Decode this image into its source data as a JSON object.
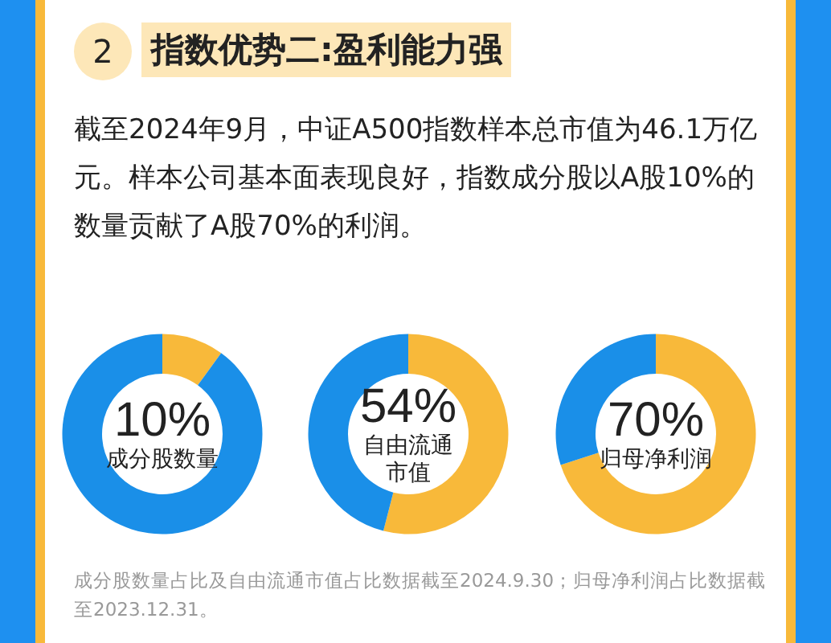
{
  "chart_data": [
    {
      "type": "other",
      "title": "指数优势二:盈利能力强",
      "subtitle": "截至2024年9月，中证A500指数样本总市值为46.1万亿元。样本公司基本面表现良好，指数成分股以A股10%的数量贡献了A股70%的利润。",
      "annotations": [
        "2",
        "成分股数量占比及自由流通市值占比数据截至2024.9.30；归母净利润占比数据截至2023.12.31。"
      ]
    },
    {
      "type": "donut",
      "categories": [
        "成分股数量",
        null
      ],
      "values": [
        10,
        90
      ],
      "colors": [
        "#f8b93a",
        "#1a8fe8"
      ],
      "value_labels": [
        "10%",
        null
      ]
    },
    {
      "type": "donut",
      "categories": [
        "自由流通市值",
        null
      ],
      "values": [
        54,
        46
      ],
      "colors": [
        "#f8b93a",
        "#1a8fe8"
      ],
      "value_labels": [
        "54%",
        null
      ]
    },
    {
      "type": "donut",
      "categories": [
        "归母净利润",
        null
      ],
      "values": [
        70,
        30
      ],
      "colors": [
        "#f8b93a",
        "#1a8fe8"
      ],
      "value_labels": [
        "70%",
        null
      ]
    }
  ]
}
